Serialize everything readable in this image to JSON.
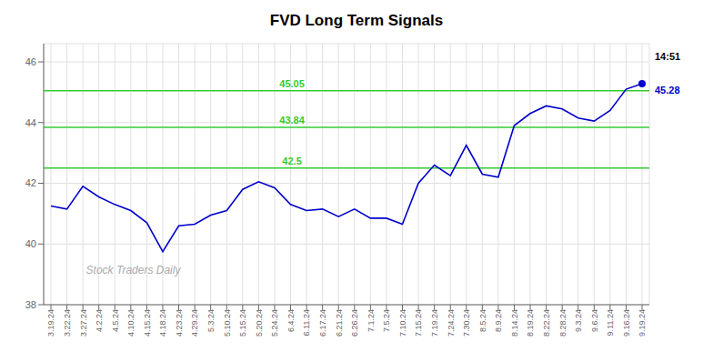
{
  "chart_data": {
    "type": "line",
    "title": "FVD Long Term Signals",
    "color": "#0000cc",
    "grid": true,
    "ylim": [
      38.0,
      46.6
    ],
    "yticks": [
      38,
      40,
      42,
      44,
      46
    ],
    "categories": [
      "3.19.24",
      "3.22.24",
      "3.27.24",
      "4.2.24",
      "4.5.24",
      "4.10.24",
      "4.15.24",
      "4.18.24",
      "4.23.24",
      "4.29.24",
      "5.3.24",
      "5.10.24",
      "5.15.24",
      "5.20.24",
      "5.24.24",
      "6.4.24",
      "6.11.24",
      "6.17.24",
      "6.21.24",
      "6.26.24",
      "7.1.24",
      "7.5.24",
      "7.10.24",
      "7.15.24",
      "7.19.24",
      "7.24.24",
      "7.30.24",
      "8.5.24",
      "8.9.24",
      "8.14.24",
      "8.19.24",
      "8.22.24",
      "8.28.24",
      "9.3.24",
      "9.6.24",
      "9.11.24",
      "9.16.24",
      "9.19.24"
    ],
    "values": [
      41.25,
      41.15,
      41.9,
      41.55,
      41.3,
      41.1,
      40.7,
      39.75,
      40.6,
      40.65,
      40.95,
      41.1,
      41.8,
      42.05,
      41.85,
      41.3,
      41.1,
      41.15,
      40.9,
      41.15,
      40.85,
      40.85,
      40.65,
      42.0,
      42.6,
      42.25,
      43.25,
      42.3,
      42.2,
      43.9,
      44.3,
      44.55,
      44.45,
      44.15,
      44.05,
      44.4,
      45.1,
      45.28
    ],
    "hlines": [
      {
        "value": 45.05,
        "label": "45.05",
        "color": "#33cc33"
      },
      {
        "value": 43.84,
        "label": "43.84",
        "color": "#33cc33"
      },
      {
        "value": 42.5,
        "label": "42.5",
        "color": "#33cc33"
      }
    ],
    "annotations": [
      {
        "text": "14:51",
        "color": "#000000"
      },
      {
        "text": "45.28",
        "color": "#0000cc"
      }
    ],
    "watermark": {
      "text": "Stock Traders Daily",
      "color": "#aaaaaa"
    }
  }
}
